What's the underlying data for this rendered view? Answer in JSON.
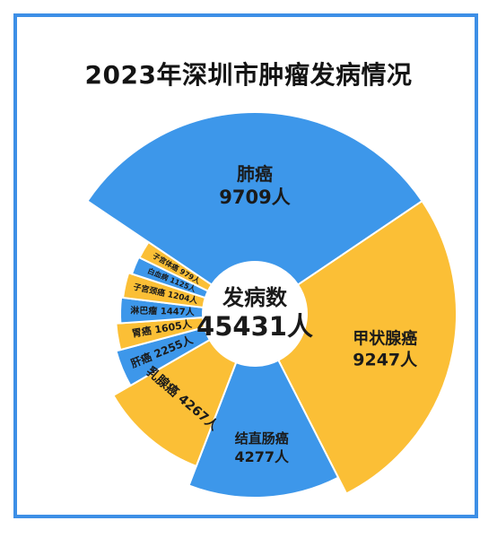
{
  "chart_data": {
    "type": "pie",
    "title": "2023年深圳市肿瘤发病情况",
    "center": {
      "label": "发病数",
      "total": "45431人"
    },
    "unit": "人",
    "slices": [
      {
        "name": "肺癌",
        "value": 9709,
        "text": "9709人",
        "color": "#3d97ea"
      },
      {
        "name": "甲状腺癌",
        "value": 9247,
        "text": "9247人",
        "color": "#fbbf36"
      },
      {
        "name": "结直肠癌",
        "value": 4277,
        "text": "4277人",
        "color": "#3d97ea"
      },
      {
        "name": "乳腺癌",
        "value": 4267,
        "text": "4267人",
        "color": "#fbbf36"
      },
      {
        "name": "肝癌",
        "value": 2255,
        "text": "2255人",
        "color": "#3d97ea"
      },
      {
        "name": "胃癌",
        "value": 1605,
        "text": "1605人",
        "color": "#fbbf36"
      },
      {
        "name": "淋巴瘤",
        "value": 1447,
        "text": "1447人",
        "color": "#3d97ea"
      },
      {
        "name": "子宫颈癌",
        "value": 1204,
        "text": "1204人",
        "color": "#fbbf36"
      },
      {
        "name": "白血病",
        "value": 1125,
        "text": "1125人",
        "color": "#3d97ea"
      },
      {
        "name": "子宫体癌",
        "value": 979,
        "text": "979人",
        "color": "#fbbf36"
      }
    ]
  }
}
